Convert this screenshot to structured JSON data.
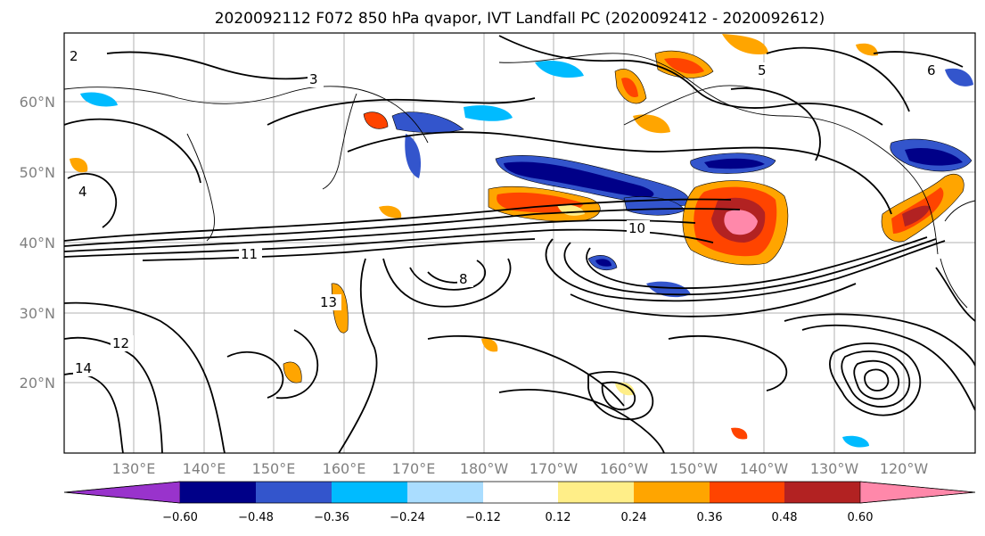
{
  "title": "2020092112 F072 850 hPa qvapor, IVT Landfall PC (2020092412 - 2020092612)",
  "map": {
    "lat_labels": [
      "60°N",
      "50°N",
      "40°N",
      "30°N",
      "20°N"
    ],
    "lon_labels": [
      "130°E",
      "140°E",
      "150°E",
      "160°E",
      "170°E",
      "180°W",
      "170°W",
      "160°W",
      "150°W",
      "140°W",
      "130°W",
      "120°W"
    ],
    "contour_labels": [
      "2",
      "3",
      "4",
      "5",
      "6",
      "8",
      "10",
      "11",
      "12",
      "13",
      "14"
    ]
  },
  "colorbar": {
    "ticks": [
      "−0.60",
      "−0.48",
      "−0.36",
      "−0.24",
      "−0.12",
      "0.12",
      "0.24",
      "0.36",
      "0.48",
      "0.60"
    ],
    "colors": [
      "#9933cc",
      "#000088",
      "#3355cc",
      "#00bbff",
      "#aaddff",
      "#ffffff",
      "#ffee88",
      "#ffa500",
      "#ff4400",
      "#b22222",
      "#ff88aa"
    ]
  }
}
